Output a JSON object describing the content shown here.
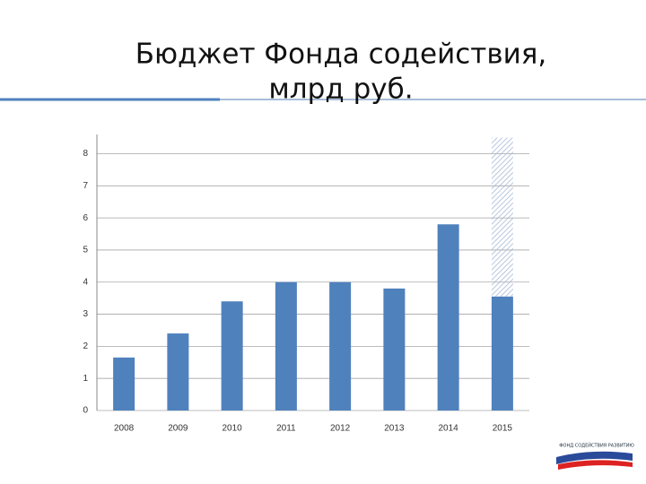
{
  "chart_data": {
    "type": "bar",
    "title": "Бюджет Фонда содействия,",
    "subtitle": "млрд руб.",
    "categories": [
      "2008",
      "2009",
      "2010",
      "2011",
      "2012",
      "2013",
      "2014",
      "2015"
    ],
    "series": [
      {
        "color": "#4f81bd",
        "values": [
          1.65,
          2.4,
          3.4,
          4.0,
          4.0,
          3.8,
          5.8,
          3.55
        ]
      },
      {
        "color": "#a9bfd8",
        "hatch": true,
        "values": [
          null,
          null,
          null,
          null,
          null,
          null,
          null,
          4.95
        ]
      }
    ],
    "ylim": [
      0,
      8.6
    ],
    "yticks": [
      0,
      1,
      2,
      3,
      4,
      5,
      6,
      7,
      8
    ],
    "grid": true
  },
  "logo": "ФОНД СОДЕЙСТВИЯ РАЗВИТИЮ"
}
